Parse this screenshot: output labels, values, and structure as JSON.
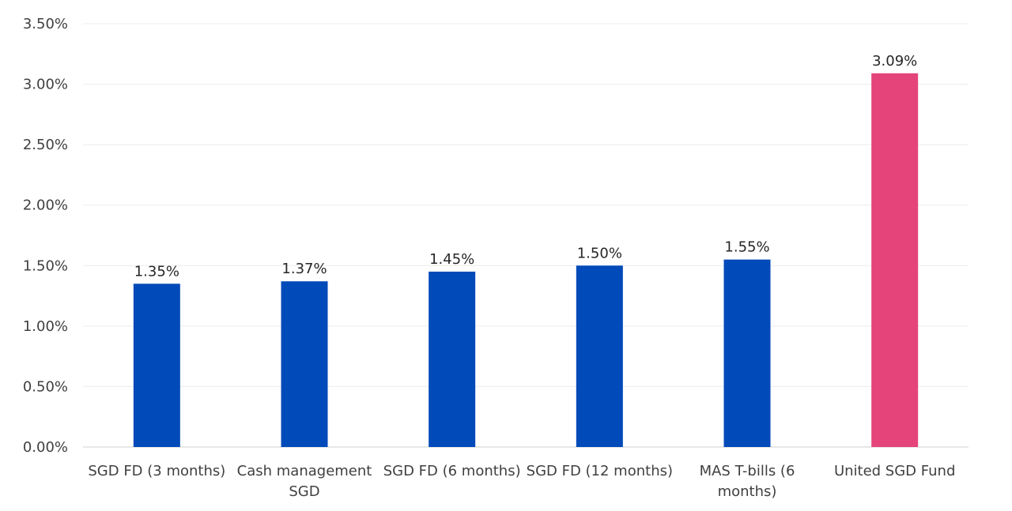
{
  "chart_data": {
    "type": "bar",
    "title": "",
    "xlabel": "",
    "ylabel": "",
    "categories": [
      [
        "SGD FD (3 months)"
      ],
      [
        "Cash management",
        "SGD"
      ],
      [
        "SGD FD (6 months)"
      ],
      [
        "SGD FD (12 months)"
      ],
      [
        "MAS T-bills (6",
        "months)"
      ],
      [
        "United SGD Fund"
      ]
    ],
    "values": [
      1.35,
      1.37,
      1.45,
      1.5,
      1.55,
      3.09
    ],
    "data_labels": [
      "1.35%",
      "1.37%",
      "1.45%",
      "1.50%",
      "1.55%",
      "3.09%"
    ],
    "bar_colors": [
      "#004ab9",
      "#004ab9",
      "#004ab9",
      "#004ab9",
      "#004ab9",
      "#e4447a"
    ],
    "ylim": [
      0,
      3.5
    ],
    "yticks": [
      0,
      0.5,
      1.0,
      1.5,
      2.0,
      2.5,
      3.0,
      3.5
    ],
    "ytick_labels": [
      "0.00%",
      "0.50%",
      "1.00%",
      "1.50%",
      "2.00%",
      "2.50%",
      "3.00%",
      "3.50%"
    ],
    "grid": true,
    "legend": "none"
  }
}
